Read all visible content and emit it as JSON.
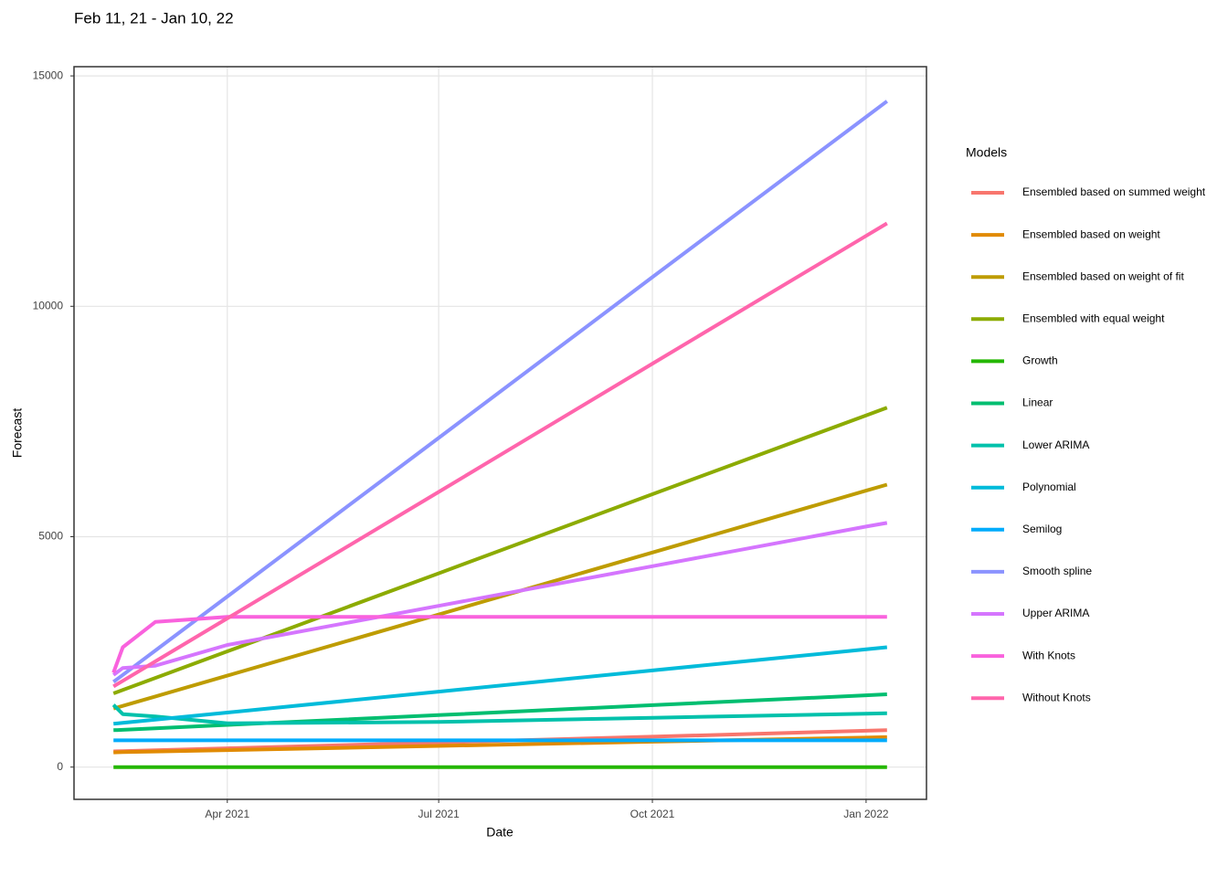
{
  "chart_data": {
    "type": "line",
    "title": "Feb 11, 21 - Jan 10, 22",
    "x_label": "Date",
    "y_label": "Forecast",
    "legend_title": "Models",
    "x": [
      "2021-02-11",
      "2021-02-15",
      "2021-03-01",
      "2021-04-01",
      "2021-07-01",
      "2021-10-01",
      "2022-01-01",
      "2022-01-10"
    ],
    "xlim": [
      "2021-01-25",
      "2022-01-27"
    ],
    "xticks": [
      {
        "value": "2021-04-01",
        "label": "Apr 2021"
      },
      {
        "value": "2021-07-01",
        "label": "Jul 2021"
      },
      {
        "value": "2021-10-01",
        "label": "Oct 2021"
      },
      {
        "value": "2022-01-01",
        "label": "Jan 2022"
      }
    ],
    "ylim": [
      -700,
      15200
    ],
    "yticks": [
      0,
      5000,
      10000,
      15000
    ],
    "grid": true,
    "legend": "right",
    "series": [
      {
        "name": "Ensembled based on summed weight",
        "color": "#f8766d",
        "values": [
          340,
          346,
          365,
          408,
          533,
          661,
          788,
          800
        ]
      },
      {
        "name": "Ensembled based on weight",
        "color": "#e18a00",
        "values": [
          320,
          324,
          338,
          369,
          459,
          550,
          641,
          650
        ]
      },
      {
        "name": "Ensembled based on weight of fit",
        "color": "#be9c00",
        "values": [
          1270,
          1328,
          1532,
          1984,
          3311,
          4657,
          5999,
          6130
        ]
      },
      {
        "name": "Ensembled with equal weight",
        "color": "#8cab00",
        "values": [
          1600,
          1674,
          1935,
          2511,
          4204,
          5921,
          7633,
          7800
        ]
      },
      {
        "name": "Growth",
        "color": "#24b700",
        "values": [
          0,
          0,
          0,
          0,
          0,
          0,
          0,
          0
        ]
      },
      {
        "name": "Linear",
        "color": "#00be70",
        "values": [
          800,
          809,
          842,
          915,
          1128,
          1344,
          1559,
          1580
        ]
      },
      {
        "name": "Lower ARIMA",
        "color": "#00c1ab",
        "values": [
          1350,
          1150,
          1100,
          950,
          980,
          1070,
          1160,
          1170
        ]
      },
      {
        "name": "Polynomial",
        "color": "#00bbda",
        "values": [
          940,
          960,
          1030,
          1184,
          1637,
          2097,
          2555,
          2600
        ]
      },
      {
        "name": "Semilog",
        "color": "#00acfc",
        "values": [
          580,
          580,
          580,
          580,
          580,
          580,
          580,
          580
        ]
      },
      {
        "name": "Smooth spline",
        "color": "#8b93ff",
        "values": [
          1850,
          2001,
          2530,
          3702,
          7142,
          10632,
          14110,
          14450
        ]
      },
      {
        "name": "Upper ARIMA",
        "color": "#d575fe",
        "values": [
          2000,
          2150,
          2200,
          2650,
          3500,
          4360,
          5220,
          5300
        ]
      },
      {
        "name": "With Knots",
        "color": "#f962dd",
        "values": [
          2050,
          2600,
          3150,
          3260,
          3260,
          3260,
          3260,
          3260
        ]
      },
      {
        "name": "Without Knots",
        "color": "#ff65ac",
        "values": [
          1750,
          1871,
          2293,
          3227,
          5971,
          8755,
          11529,
          11800
        ]
      }
    ]
  }
}
